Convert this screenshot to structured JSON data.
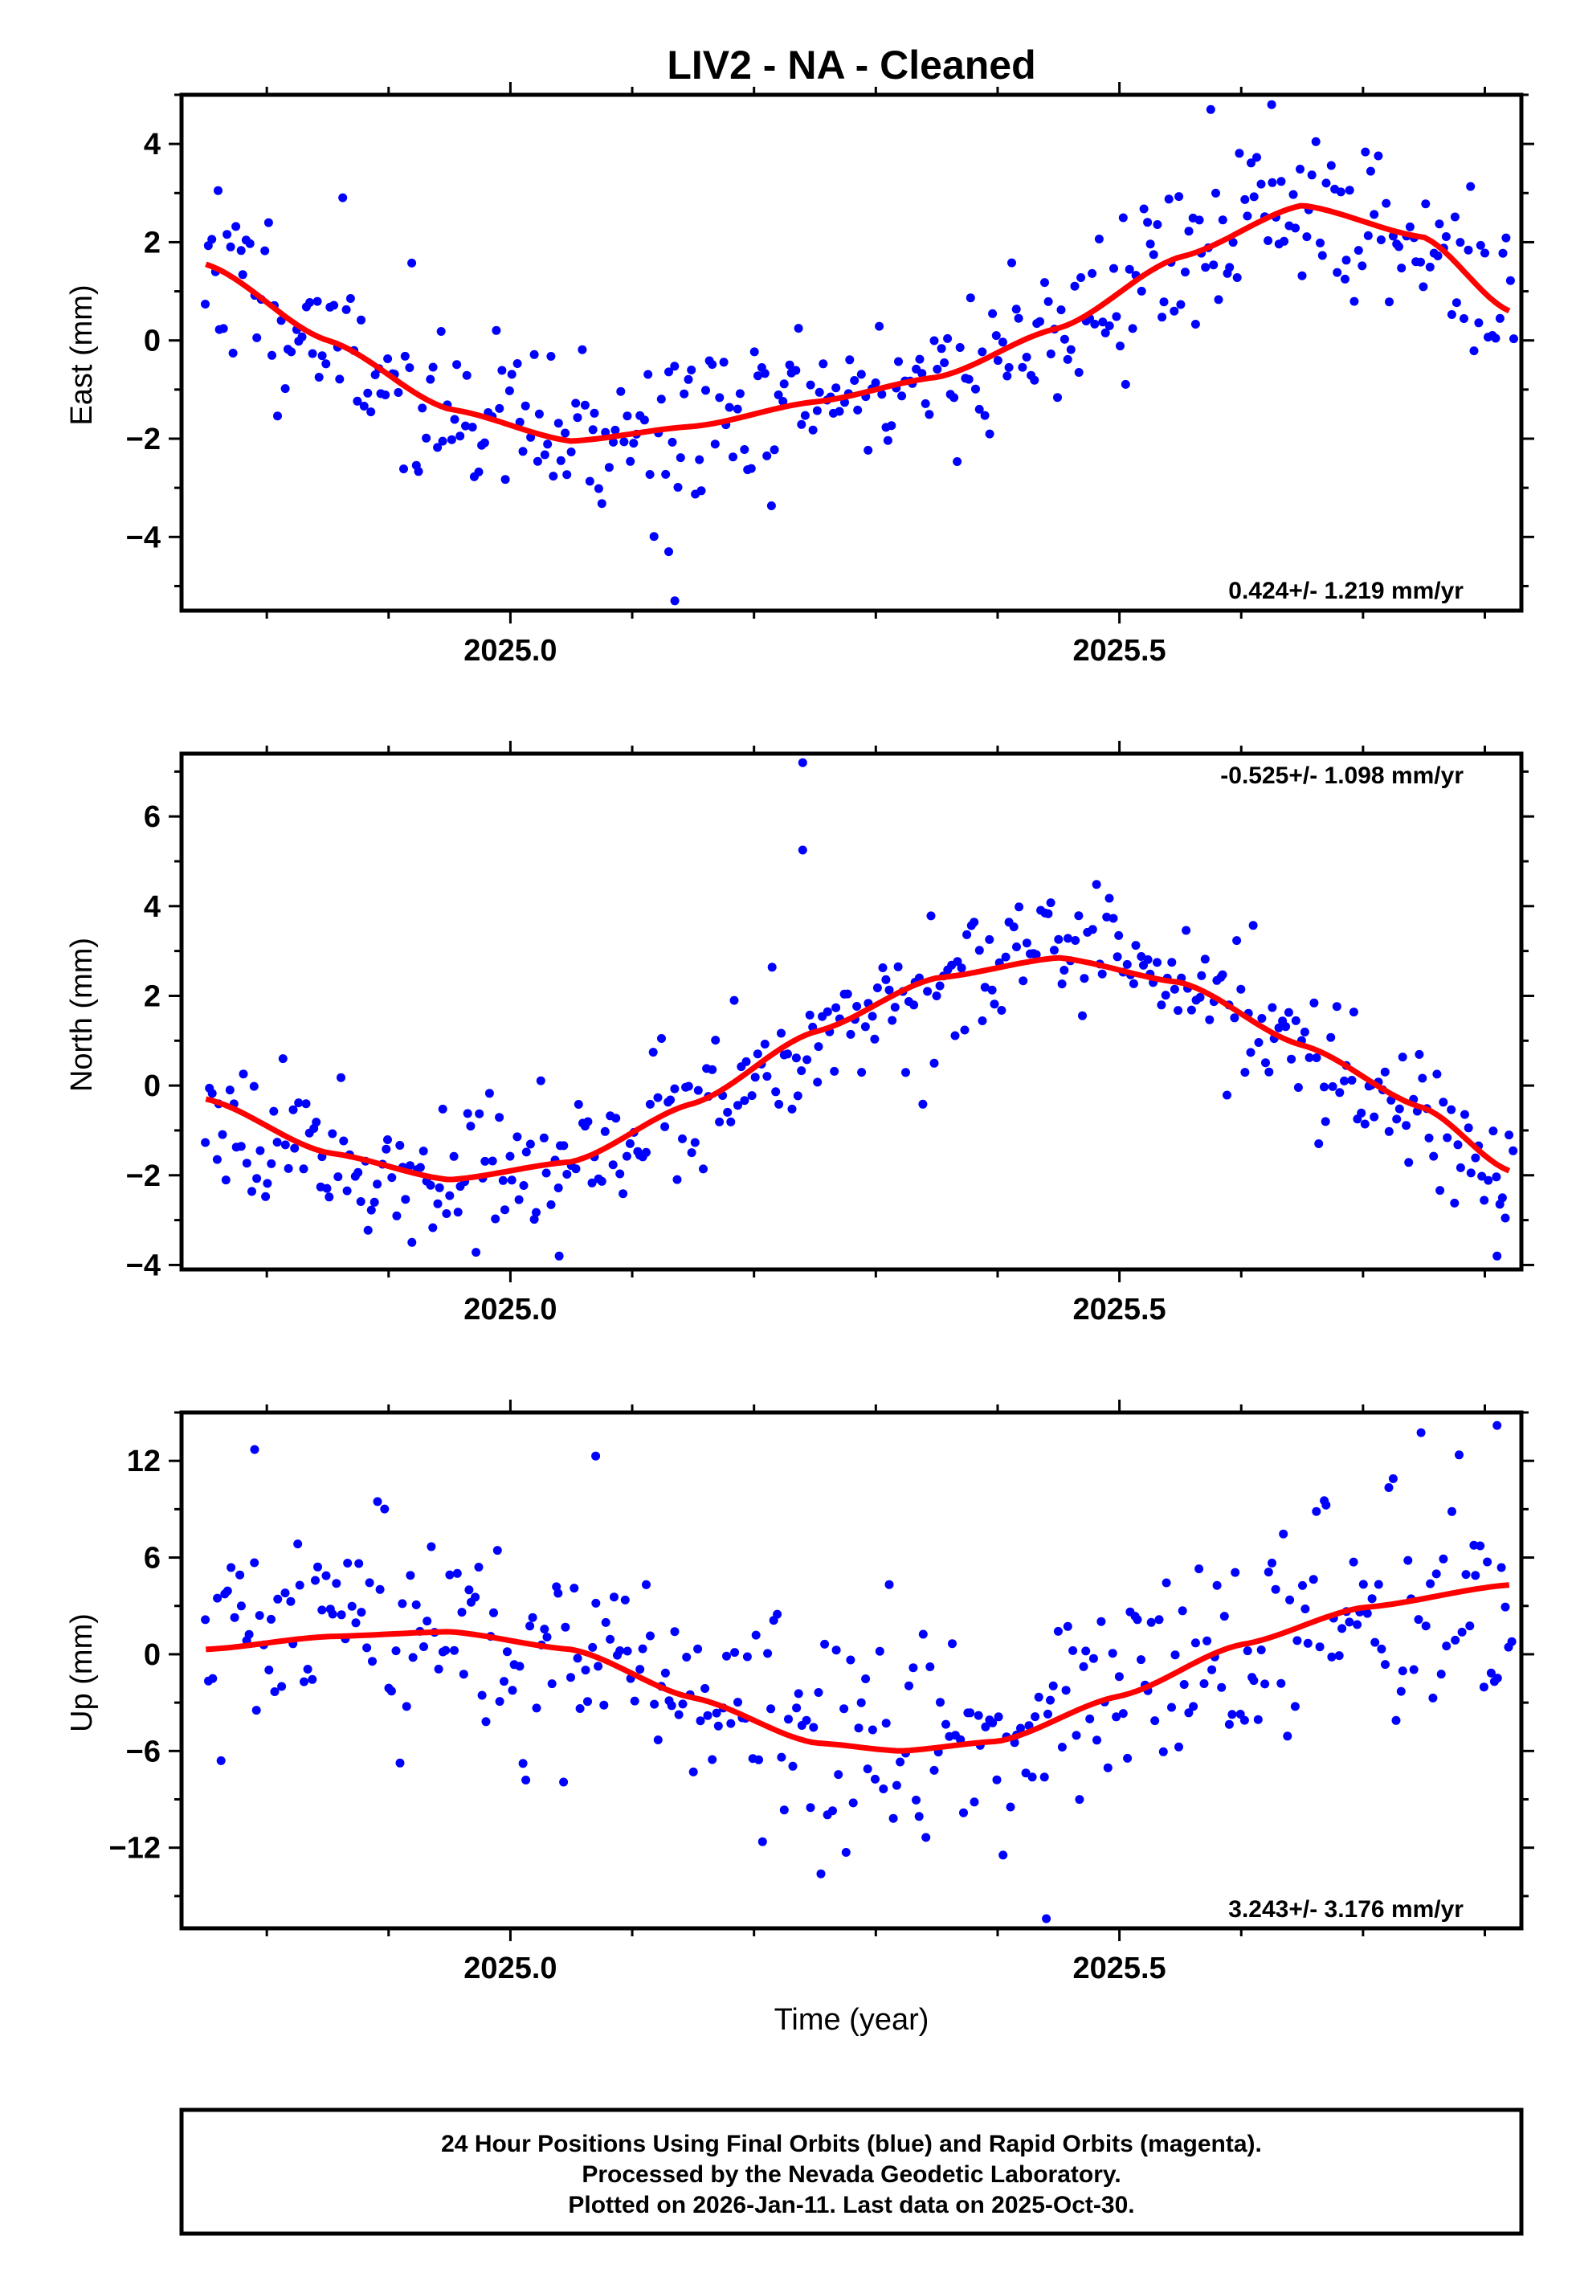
{
  "title": "LIV2  - NA - Cleaned",
  "x_label": "Time (year)",
  "footer": {
    "line1": "24 Hour Positions Using Final Orbits (blue) and Rapid Orbits (magenta).",
    "line2": "Processed by the Nevada Geodetic Laboratory.",
    "line3": "Plotted on 2026-Jan-11. Last data on 2025-Oct-30."
  },
  "colors": {
    "points": "#0000ff",
    "fit": "#ff0000",
    "frame": "#000000"
  },
  "chart_data": [
    {
      "type": "scatter",
      "name": "east",
      "ylabel": "East (mm)",
      "rate_text": "0.424+/- 1.219 mm/yr",
      "rate_position": "bottom-right",
      "xlim": [
        2024.73,
        2025.83
      ],
      "ylim": [
        -5.5,
        5.0
      ],
      "xticks": [
        2025.0,
        2025.5
      ],
      "xtick_labels": [
        "2025.0",
        "2025.5"
      ],
      "yticks": [
        -4,
        -2,
        0,
        2,
        4
      ],
      "ytick_labels": [
        "−4",
        "−2",
        "0",
        "2",
        "4"
      ],
      "fit": {
        "x": [
          2024.75,
          2024.85,
          2024.95,
          2025.05,
          2025.15,
          2025.25,
          2025.35,
          2025.45,
          2025.55,
          2025.65,
          2025.75,
          2025.82
        ],
        "y": [
          1.55,
          0.0,
          -1.4,
          -2.05,
          -1.75,
          -1.25,
          -0.75,
          0.25,
          1.7,
          2.75,
          2.1,
          0.6
        ]
      },
      "seed": 11,
      "noise": 0.85,
      "n": 380,
      "outliers": [
        [
          2025.135,
          -5.3
        ],
        [
          2025.13,
          -4.3
        ],
        [
          2025.575,
          4.7
        ],
        [
          2025.625,
          4.8
        ],
        [
          2024.76,
          3.05
        ]
      ]
    },
    {
      "type": "scatter",
      "name": "north",
      "ylabel": "North (mm)",
      "rate_text": "-0.525+/- 1.098 mm/yr",
      "rate_position": "top-right",
      "xlim": [
        2024.73,
        2025.83
      ],
      "ylim": [
        -4.1,
        7.4
      ],
      "xticks": [
        2025.0,
        2025.5
      ],
      "xtick_labels": [
        "2025.0",
        "2025.5"
      ],
      "yticks": [
        -4,
        -2,
        0,
        2,
        4,
        6
      ],
      "ytick_labels": [
        "−4",
        "−2",
        "0",
        "2",
        "4",
        "6"
      ],
      "fit": {
        "x": [
          2024.75,
          2024.85,
          2024.95,
          2025.05,
          2025.15,
          2025.25,
          2025.35,
          2025.45,
          2025.55,
          2025.65,
          2025.75,
          2025.82
        ],
        "y": [
          -0.3,
          -1.5,
          -2.1,
          -1.7,
          -0.4,
          1.2,
          2.4,
          2.85,
          2.3,
          0.9,
          -0.5,
          -1.9
        ]
      },
      "seed": 23,
      "noise": 0.75,
      "n": 380,
      "outliers": [
        [
          2025.24,
          7.2
        ],
        [
          2025.24,
          5.25
        ],
        [
          2025.81,
          -3.8
        ],
        [
          2025.04,
          -3.8
        ]
      ]
    },
    {
      "type": "scatter",
      "name": "up",
      "ylabel": "Up (mm)",
      "rate_text": "3.243+/- 3.176 mm/yr",
      "rate_position": "bottom-right",
      "xlim": [
        2024.73,
        2025.83
      ],
      "ylim": [
        -17.0,
        15.0
      ],
      "xticks": [
        2025.0,
        2025.5
      ],
      "xtick_labels": [
        "2025.0",
        "2025.5"
      ],
      "yticks": [
        -12,
        -6,
        0,
        6,
        12
      ],
      "ytick_labels": [
        "−12",
        "−6",
        "0",
        "6",
        "12"
      ],
      "fit": {
        "x": [
          2024.75,
          2024.85,
          2024.95,
          2025.05,
          2025.15,
          2025.25,
          2025.32,
          2025.4,
          2025.5,
          2025.6,
          2025.7,
          2025.82
        ],
        "y": [
          0.3,
          1.1,
          1.4,
          0.3,
          -2.7,
          -5.5,
          -6.0,
          -5.4,
          -2.6,
          0.6,
          2.9,
          4.3
        ]
      },
      "seed": 37,
      "noise": 3.4,
      "n": 360,
      "outliers": [
        [
          2025.81,
          14.2
        ],
        [
          2024.79,
          12.7
        ],
        [
          2025.44,
          -16.4
        ],
        [
          2025.07,
          12.3
        ]
      ]
    }
  ]
}
